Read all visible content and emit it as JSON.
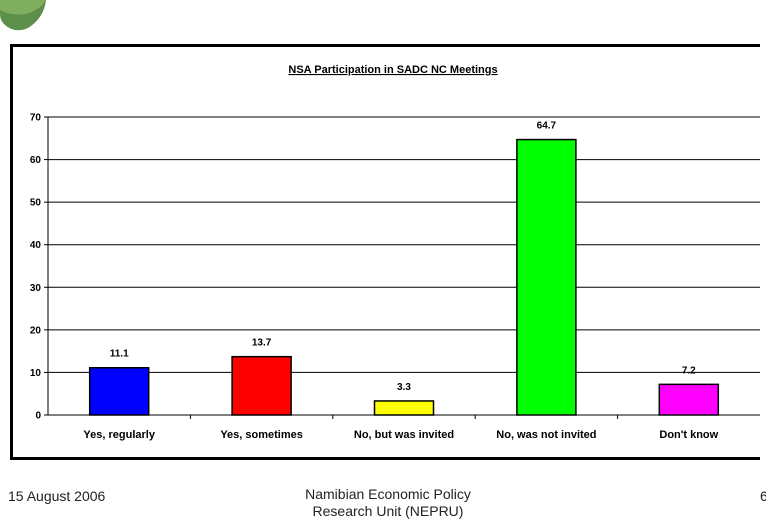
{
  "chart_data": {
    "type": "bar",
    "title": "NSA Participation in SADC NC Meetings",
    "xlabel": "",
    "ylabel": "",
    "ylim": [
      0,
      70
    ],
    "yticks": [
      "0",
      "10",
      "20",
      "30",
      "40",
      "50",
      "60",
      "70"
    ],
    "categories": [
      "Yes, regularly",
      "Yes, sometimes",
      "No, but was invited",
      "No, was not invited",
      "Don't know"
    ],
    "values": [
      11.1,
      13.7,
      3.3,
      64.7,
      7.2
    ],
    "value_labels": [
      "11.1",
      "13.7",
      "3.3",
      "64.7",
      "7.2"
    ],
    "colors": [
      "#0000ff",
      "#ff0000",
      "#ffff00",
      "#00ff00",
      "#ff00ff"
    ],
    "grid": true,
    "legend": "none"
  },
  "footer": {
    "date": "15 August 2006",
    "org_line1": "Namibian Economic Policy",
    "org_line2": "Research Unit (NEPRU)",
    "page": "6"
  },
  "decoration": {
    "corner_icon": "leaf-logo-icon"
  }
}
